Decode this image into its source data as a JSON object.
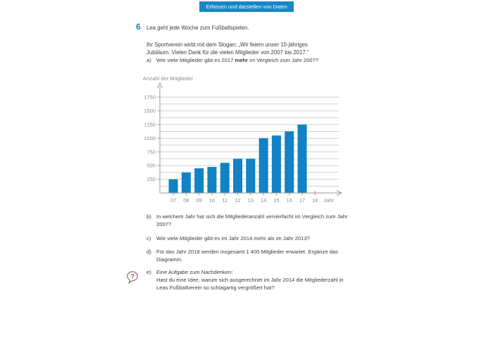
{
  "banner": {
    "label": "Erfassen und darstellen von Daten",
    "bg_color": "#1787c8",
    "text_color": "#ffffff"
  },
  "task": {
    "number": "6",
    "number_color": "#1583c6",
    "intro": "Lea geht jede Woche zum Fußballspielen.",
    "slogan_line1": "Ihr Sportverein wirbt mit dem Slogan: „Wir feiern unser 10-jähriges",
    "slogan_line2": "Jubiläum. Vielen Dank für die vielen Mitglieder von 2007 bis 2017.“"
  },
  "question_a": {
    "label": "a)",
    "before": "Wie viele Mitglieder gibt es 2017 ",
    "bold": "mehr",
    "after": " im Vergleich zum Jahr 2007?"
  },
  "questions": [
    {
      "label": "b)",
      "text": "In welchem Jahr hat sich die Mitgliederanzahl vervierfacht im Vergleich zum Jahr 2007?"
    },
    {
      "label": "c)",
      "text": "Wie viele Mitglieder gibt es im Jahr 2014 mehr als im Jahr 2013?"
    },
    {
      "label": "d)",
      "text": "Für das Jahr 2018 werden insgesamt 1 400 Mitglieder erwartet. Ergänze das Diagramm."
    }
  ],
  "question_e": {
    "label": "e)",
    "line1": "Eine Aufgabe zum Nachdenken:",
    "body": "Hast du eine Idee, warum sich ausgerechnet im Jahr 2014 die Mitgliederzahl in Leas Fußballverein so schlagartig vergrößert hat?",
    "icon": "question-speech-bubble-icon",
    "icon_glyph": "?",
    "icon_color": "#cf3b2c"
  },
  "chart_data": {
    "type": "bar",
    "title": "Anzahl der Mitglieder",
    "xlabel": "Jahr",
    "categories": [
      "07",
      "08",
      "09",
      "10",
      "11",
      "12",
      "13",
      "14",
      "15",
      "16",
      "17"
    ],
    "values": [
      250,
      375,
      450,
      475,
      550,
      625,
      625,
      1000,
      1050,
      1125,
      1250
    ],
    "extra_categories": [
      "18"
    ],
    "y_major_ticks": [
      250,
      500,
      750,
      1000,
      1250,
      1500,
      1750
    ],
    "y_minor_step": 125,
    "ylim": [
      0,
      1875
    ],
    "bar_color": "#1182c4",
    "grid": true,
    "legend_position": "none",
    "axis_color": "#9a9a9a",
    "grid_color": "#cbcbcb",
    "tick_label_color": "#8d8d8d"
  }
}
